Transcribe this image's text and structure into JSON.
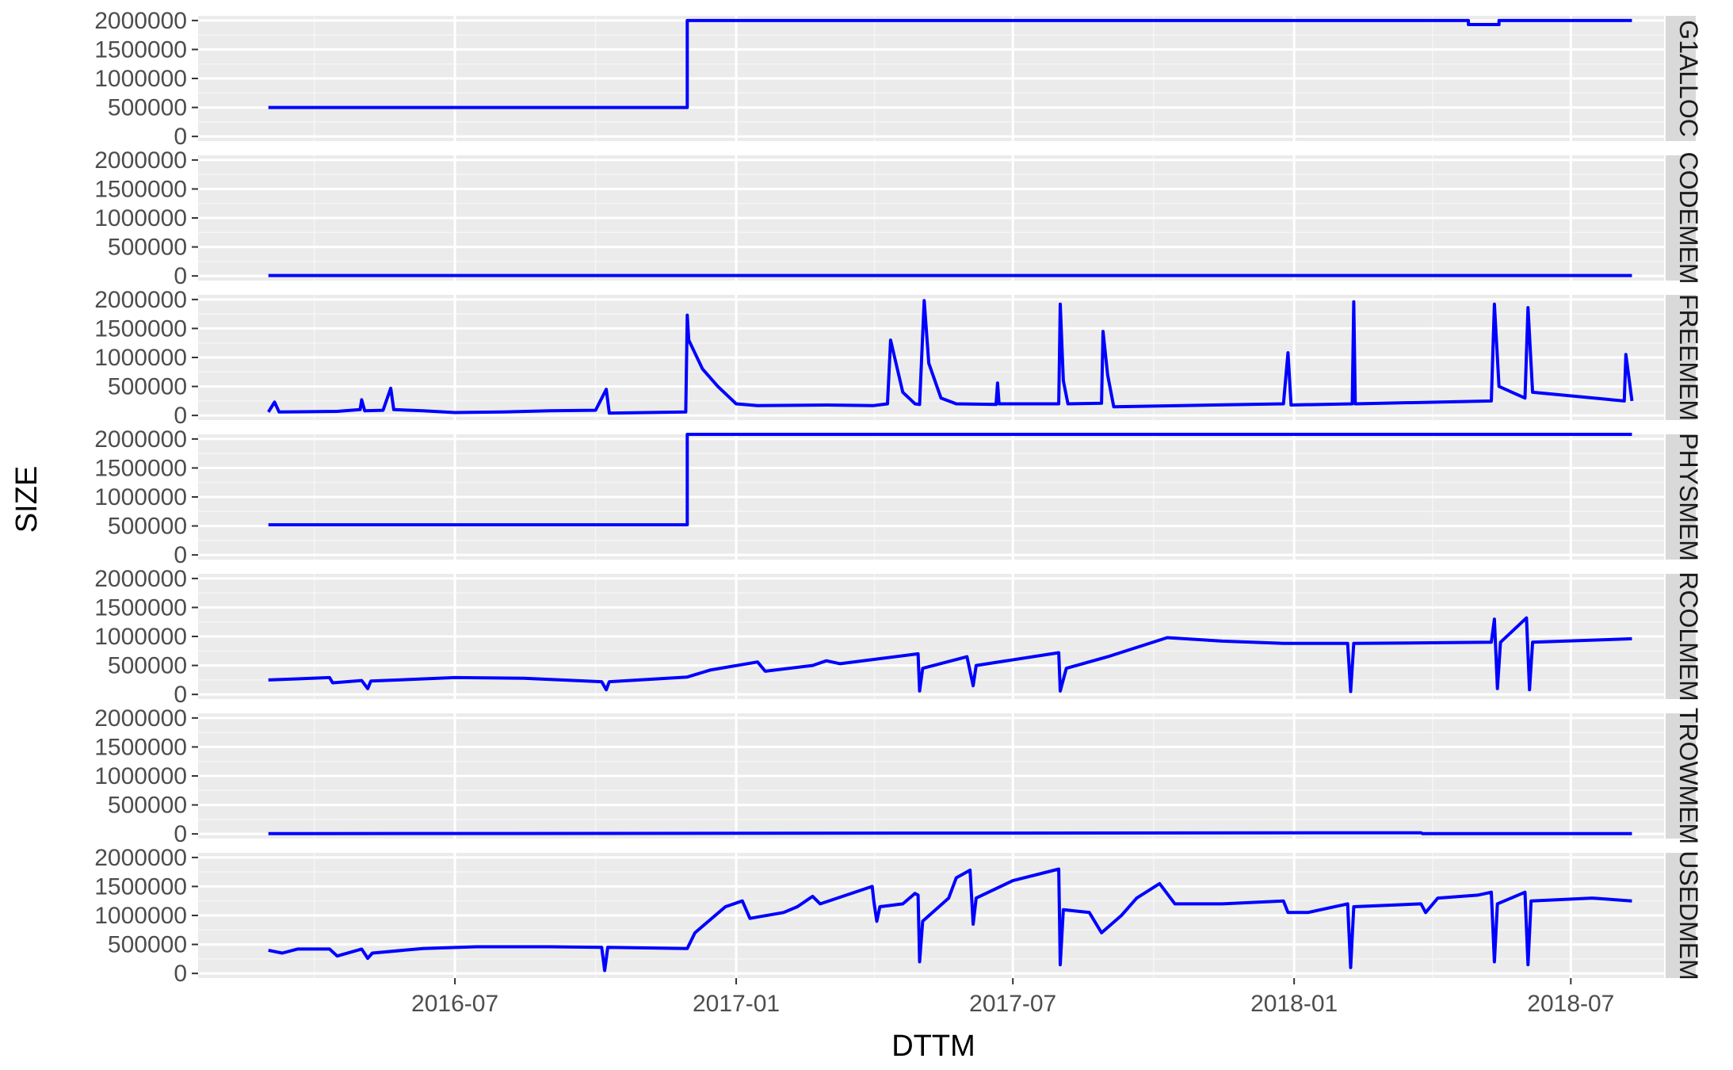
{
  "chart_data": {
    "type": "line",
    "facet_layout": "rows",
    "xlabel": "DTTM",
    "ylabel": "SIZE",
    "x_range": [
      "2016-01-15",
      "2018-08-31"
    ],
    "x_ticks": [
      "2016-07",
      "2017-01",
      "2017-07",
      "2018-01",
      "2018-07"
    ],
    "y_range": [
      -80000,
      2080000
    ],
    "y_ticks": [
      0,
      500000,
      1000000,
      1500000,
      2000000
    ],
    "y_tick_labels": [
      "0",
      "500000",
      "1000000",
      "1500000",
      "2000000"
    ],
    "grid": true,
    "line_color": "#0000ff",
    "panel_bg": "#ebebeb",
    "strip_bg": "#d9d9d9",
    "panels": [
      {
        "strip_label": "G1ALLOC",
        "points": [
          [
            "2016-03-01",
            500000
          ],
          [
            "2016-11-30",
            500000
          ],
          [
            "2016-11-30",
            2000000
          ],
          [
            "2018-04-25",
            2000000
          ],
          [
            "2018-04-25",
            1930000
          ],
          [
            "2018-05-15",
            1930000
          ],
          [
            "2018-05-15",
            2000000
          ],
          [
            "2018-08-10",
            2000000
          ]
        ]
      },
      {
        "strip_label": "CODEMEM",
        "points": [
          [
            "2016-03-01",
            8000
          ],
          [
            "2018-08-10",
            8000
          ]
        ]
      },
      {
        "strip_label": "FREEMEM",
        "points": [
          [
            "2016-03-01",
            60000
          ],
          [
            "2016-03-05",
            230000
          ],
          [
            "2016-03-08",
            60000
          ],
          [
            "2016-04-15",
            70000
          ],
          [
            "2016-04-30",
            100000
          ],
          [
            "2016-05-01",
            270000
          ],
          [
            "2016-05-03",
            80000
          ],
          [
            "2016-05-15",
            90000
          ],
          [
            "2016-05-20",
            470000
          ],
          [
            "2016-05-22",
            100000
          ],
          [
            "2016-06-10",
            80000
          ],
          [
            "2016-07-01",
            50000
          ],
          [
            "2016-08-01",
            60000
          ],
          [
            "2016-09-01",
            80000
          ],
          [
            "2016-10-01",
            90000
          ],
          [
            "2016-10-08",
            450000
          ],
          [
            "2016-10-10",
            40000
          ],
          [
            "2016-11-29",
            60000
          ],
          [
            "2016-11-30",
            1730000
          ],
          [
            "2016-12-01",
            1300000
          ],
          [
            "2016-12-10",
            800000
          ],
          [
            "2016-12-20",
            500000
          ],
          [
            "2017-01-01",
            200000
          ],
          [
            "2017-01-15",
            170000
          ],
          [
            "2017-03-01",
            180000
          ],
          [
            "2017-04-01",
            170000
          ],
          [
            "2017-04-10",
            200000
          ],
          [
            "2017-04-12",
            1300000
          ],
          [
            "2017-04-20",
            400000
          ],
          [
            "2017-04-28",
            200000
          ],
          [
            "2017-05-01",
            190000
          ],
          [
            "2017-05-04",
            1980000
          ],
          [
            "2017-05-07",
            900000
          ],
          [
            "2017-05-15",
            300000
          ],
          [
            "2017-05-25",
            200000
          ],
          [
            "2017-06-20",
            190000
          ],
          [
            "2017-06-21",
            560000
          ],
          [
            "2017-06-22",
            200000
          ],
          [
            "2017-07-31",
            200000
          ],
          [
            "2017-08-01",
            1920000
          ],
          [
            "2017-08-03",
            600000
          ],
          [
            "2017-08-06",
            200000
          ],
          [
            "2017-08-28",
            210000
          ],
          [
            "2017-08-29",
            1450000
          ],
          [
            "2017-09-01",
            700000
          ],
          [
            "2017-09-05",
            150000
          ],
          [
            "2017-12-25",
            200000
          ],
          [
            "2017-12-28",
            1080000
          ],
          [
            "2017-12-30",
            180000
          ],
          [
            "2018-02-08",
            200000
          ],
          [
            "2018-02-09",
            1960000
          ],
          [
            "2018-02-10",
            200000
          ],
          [
            "2018-05-10",
            250000
          ],
          [
            "2018-05-12",
            1920000
          ],
          [
            "2018-05-15",
            500000
          ],
          [
            "2018-06-01",
            300000
          ],
          [
            "2018-06-03",
            1860000
          ],
          [
            "2018-06-06",
            400000
          ],
          [
            "2018-08-05",
            250000
          ],
          [
            "2018-08-06",
            1050000
          ],
          [
            "2018-08-10",
            250000
          ]
        ]
      },
      {
        "strip_label": "PHYSMEM",
        "points": [
          [
            "2016-03-01",
            520000
          ],
          [
            "2016-11-30",
            520000
          ],
          [
            "2016-11-30",
            2080000
          ],
          [
            "2018-08-10",
            2080000
          ]
        ]
      },
      {
        "strip_label": "RCOLMEM",
        "points": [
          [
            "2016-03-01",
            250000
          ],
          [
            "2016-04-10",
            290000
          ],
          [
            "2016-04-12",
            200000
          ],
          [
            "2016-05-01",
            240000
          ],
          [
            "2016-05-05",
            100000
          ],
          [
            "2016-05-07",
            230000
          ],
          [
            "2016-07-01",
            290000
          ],
          [
            "2016-08-15",
            280000
          ],
          [
            "2016-10-05",
            220000
          ],
          [
            "2016-10-08",
            80000
          ],
          [
            "2016-10-10",
            220000
          ],
          [
            "2016-11-30",
            300000
          ],
          [
            "2016-12-15",
            420000
          ],
          [
            "2017-01-15",
            560000
          ],
          [
            "2017-01-20",
            400000
          ],
          [
            "2017-02-20",
            500000
          ],
          [
            "2017-03-01",
            580000
          ],
          [
            "2017-03-10",
            530000
          ],
          [
            "2017-04-30",
            700000
          ],
          [
            "2017-05-01",
            60000
          ],
          [
            "2017-05-03",
            450000
          ],
          [
            "2017-06-01",
            650000
          ],
          [
            "2017-06-05",
            150000
          ],
          [
            "2017-06-07",
            500000
          ],
          [
            "2017-07-31",
            720000
          ],
          [
            "2017-08-01",
            60000
          ],
          [
            "2017-08-05",
            450000
          ],
          [
            "2017-09-01",
            650000
          ],
          [
            "2017-10-10",
            980000
          ],
          [
            "2017-11-15",
            920000
          ],
          [
            "2017-12-25",
            880000
          ],
          [
            "2018-02-05",
            880000
          ],
          [
            "2018-02-07",
            50000
          ],
          [
            "2018-02-09",
            880000
          ],
          [
            "2018-05-10",
            900000
          ],
          [
            "2018-05-12",
            1300000
          ],
          [
            "2018-05-14",
            100000
          ],
          [
            "2018-05-16",
            900000
          ],
          [
            "2018-06-02",
            1320000
          ],
          [
            "2018-06-04",
            80000
          ],
          [
            "2018-06-06",
            900000
          ],
          [
            "2018-08-10",
            960000
          ]
        ]
      },
      {
        "strip_label": "TROWMEM",
        "points": [
          [
            "2016-03-01",
            5000
          ],
          [
            "2017-06-01",
            15000
          ],
          [
            "2018-03-25",
            20000
          ],
          [
            "2018-03-26",
            5000
          ],
          [
            "2018-08-10",
            5000
          ]
        ]
      },
      {
        "strip_label": "USEDMEM",
        "points": [
          [
            "2016-03-01",
            400000
          ],
          [
            "2016-03-10",
            350000
          ],
          [
            "2016-03-20",
            420000
          ],
          [
            "2016-04-10",
            420000
          ],
          [
            "2016-04-15",
            300000
          ],
          [
            "2016-05-01",
            420000
          ],
          [
            "2016-05-05",
            260000
          ],
          [
            "2016-05-08",
            350000
          ],
          [
            "2016-06-10",
            430000
          ],
          [
            "2016-07-15",
            460000
          ],
          [
            "2016-09-01",
            460000
          ],
          [
            "2016-10-05",
            450000
          ],
          [
            "2016-10-07",
            50000
          ],
          [
            "2016-10-09",
            450000
          ],
          [
            "2016-11-30",
            430000
          ],
          [
            "2016-12-05",
            700000
          ],
          [
            "2016-12-25",
            1150000
          ],
          [
            "2017-01-05",
            1250000
          ],
          [
            "2017-01-10",
            950000
          ],
          [
            "2017-02-01",
            1050000
          ],
          [
            "2017-02-10",
            1150000
          ],
          [
            "2017-02-20",
            1330000
          ],
          [
            "2017-02-25",
            1200000
          ],
          [
            "2017-03-31",
            1500000
          ],
          [
            "2017-04-01",
            1250000
          ],
          [
            "2017-04-03",
            900000
          ],
          [
            "2017-04-05",
            1150000
          ],
          [
            "2017-04-20",
            1200000
          ],
          [
            "2017-04-28",
            1380000
          ],
          [
            "2017-04-30",
            1350000
          ],
          [
            "2017-05-01",
            200000
          ],
          [
            "2017-05-03",
            900000
          ],
          [
            "2017-05-20",
            1300000
          ],
          [
            "2017-05-25",
            1650000
          ],
          [
            "2017-06-03",
            1780000
          ],
          [
            "2017-06-05",
            850000
          ],
          [
            "2017-06-07",
            1300000
          ],
          [
            "2017-07-01",
            1600000
          ],
          [
            "2017-07-31",
            1800000
          ],
          [
            "2017-08-01",
            150000
          ],
          [
            "2017-08-03",
            1100000
          ],
          [
            "2017-08-20",
            1050000
          ],
          [
            "2017-08-28",
            700000
          ],
          [
            "2017-09-10",
            1000000
          ],
          [
            "2017-09-20",
            1300000
          ],
          [
            "2017-10-05",
            1550000
          ],
          [
            "2017-10-15",
            1200000
          ],
          [
            "2017-11-15",
            1200000
          ],
          [
            "2017-12-25",
            1250000
          ],
          [
            "2017-12-28",
            1050000
          ],
          [
            "2018-01-10",
            1050000
          ],
          [
            "2018-02-05",
            1200000
          ],
          [
            "2018-02-07",
            100000
          ],
          [
            "2018-02-09",
            1150000
          ],
          [
            "2018-03-25",
            1200000
          ],
          [
            "2018-03-28",
            1050000
          ],
          [
            "2018-04-05",
            1300000
          ],
          [
            "2018-05-01",
            1350000
          ],
          [
            "2018-05-10",
            1400000
          ],
          [
            "2018-05-12",
            200000
          ],
          [
            "2018-05-14",
            1200000
          ],
          [
            "2018-06-01",
            1400000
          ],
          [
            "2018-06-03",
            150000
          ],
          [
            "2018-06-05",
            1250000
          ],
          [
            "2018-07-15",
            1300000
          ],
          [
            "2018-08-10",
            1250000
          ]
        ]
      }
    ]
  }
}
